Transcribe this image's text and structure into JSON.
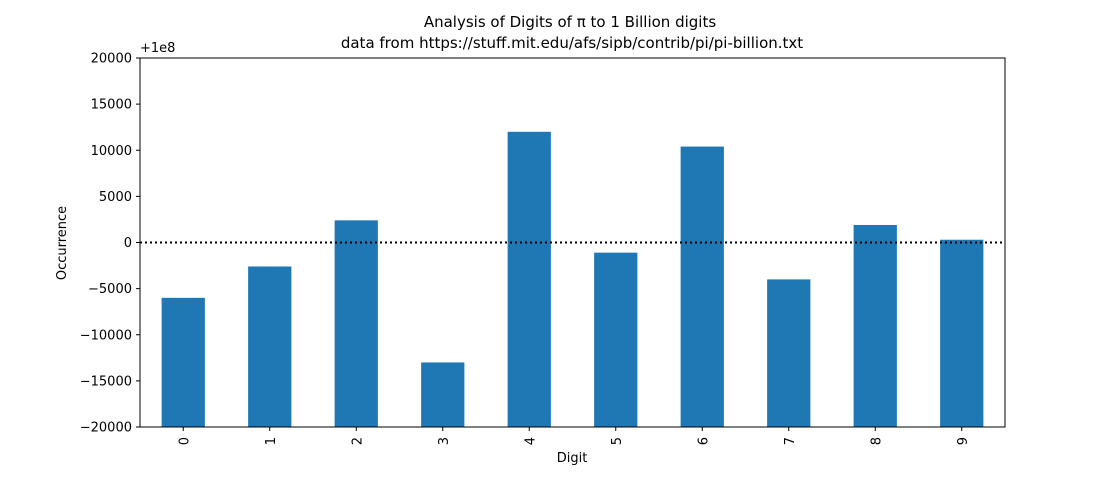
{
  "chart_data": {
    "type": "bar",
    "title": "Analysis of Digits of π to 1 Billion digits",
    "subtitle": "data from https://stuff.mit.edu/afs/sipb/contrib/pi/pi-billion.txt",
    "x_label": "Digit",
    "y_label": "Occurrence",
    "offset_text": "+1e8",
    "offset_value": 100000000,
    "categories": [
      "0",
      "1",
      "2",
      "3",
      "4",
      "5",
      "6",
      "7",
      "8",
      "9"
    ],
    "values": [
      -6000,
      -2600,
      2400,
      -13000,
      12000,
      -1100,
      10400,
      -4000,
      1900,
      300
    ],
    "color": "#1f77b4",
    "reference_line": 0,
    "ylim": [
      -20000,
      20000
    ],
    "yticks": [
      {
        "value": -20000,
        "label": "−20000"
      },
      {
        "value": -15000,
        "label": "−15000"
      },
      {
        "value": -10000,
        "label": "−10000"
      },
      {
        "value": -5000,
        "label": "−5000"
      },
      0,
      5000,
      10000,
      15000,
      20000
    ],
    "grid": false
  }
}
